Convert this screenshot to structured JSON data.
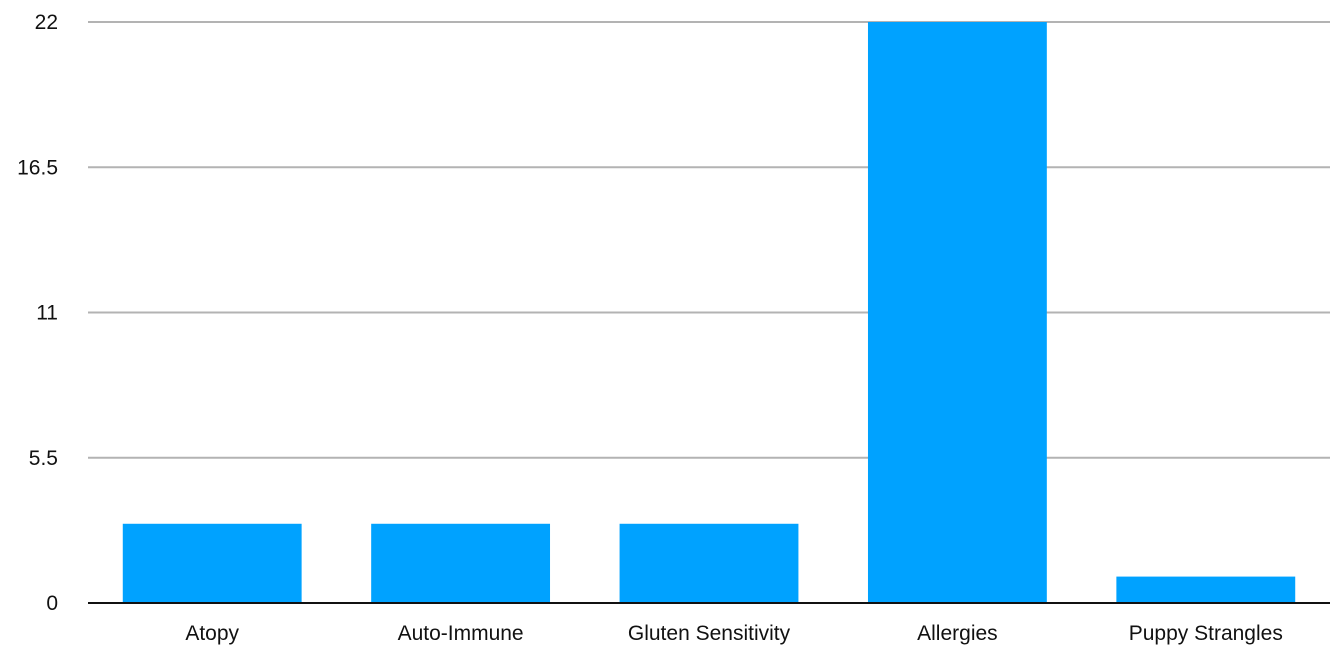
{
  "chart_data": {
    "type": "bar",
    "title": "",
    "xlabel": "",
    "ylabel": "",
    "categories": [
      "Atopy",
      "Auto-Immune",
      "Gluten Sensitivity",
      "Allergies",
      "Puppy Strangles"
    ],
    "values": [
      3,
      3,
      3,
      22,
      1
    ],
    "ylim": [
      0,
      22
    ],
    "yticks": [
      0,
      5.5,
      11,
      16.5,
      22
    ],
    "ytick_labels": [
      "0",
      "5.5",
      "11",
      "16.5",
      "22"
    ],
    "grid": true,
    "legend": "none",
    "colors": {
      "bar": "#00A2FF",
      "grid": "#B3B3B3",
      "axis": "#111111"
    }
  }
}
